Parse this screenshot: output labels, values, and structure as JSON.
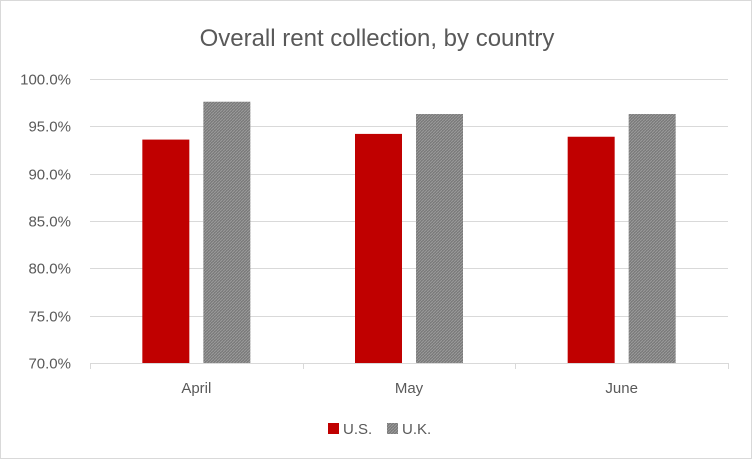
{
  "chart_data": {
    "type": "bar",
    "title": "Overall rent collection, by country",
    "categories": [
      "April",
      "May",
      "June"
    ],
    "series": [
      {
        "name": "U.S.",
        "values": [
          93.6,
          94.2,
          93.9
        ],
        "color": "#c00000",
        "pattern": "solid"
      },
      {
        "name": "U.K.",
        "values": [
          97.6,
          96.3,
          96.3
        ],
        "color": "#808080",
        "pattern": "hatched"
      }
    ],
    "ylim": [
      70,
      100
    ],
    "yticks": [
      70,
      75,
      80,
      85,
      90,
      95,
      100
    ],
    "ytick_labels": [
      "70.0%",
      "75.0%",
      "80.0%",
      "85.0%",
      "90.0%",
      "95.0%",
      "100.0%"
    ],
    "xlabel": "",
    "ylabel": "",
    "grid": true,
    "legend_position": "bottom"
  }
}
